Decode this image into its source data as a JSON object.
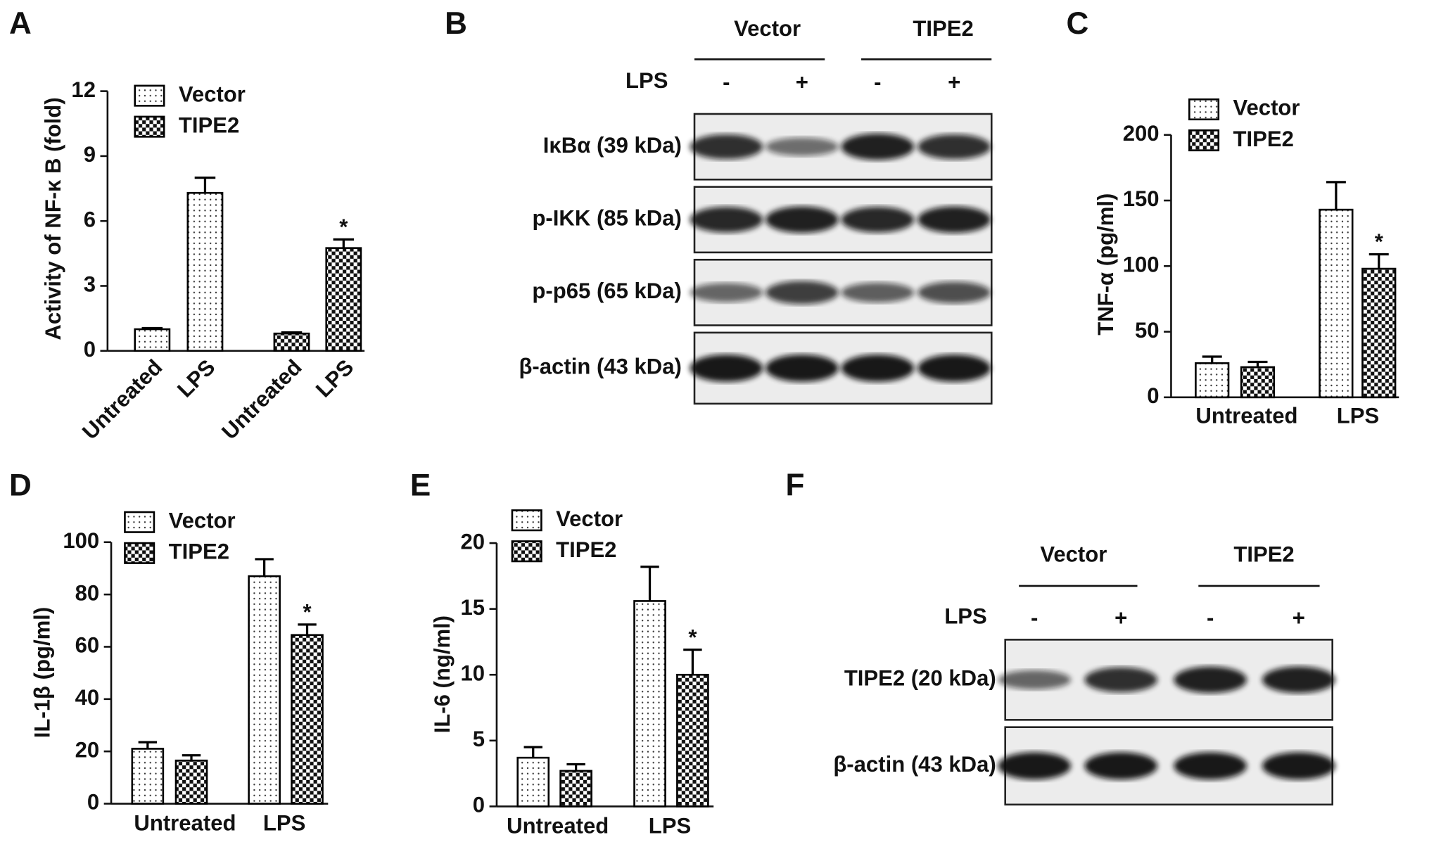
{
  "panels": [
    "A",
    "B",
    "C",
    "D",
    "E",
    "F"
  ],
  "chart_data": [
    {
      "type": "bar",
      "group_by": "series",
      "ylabel": "Activity of NF-κ B (fold)",
      "categories": [
        "Untreated",
        "LPS"
      ],
      "series": [
        {
          "name": "Vector",
          "pattern": "dots",
          "color": "#000000",
          "values": [
            1.0,
            7.3
          ],
          "errors": [
            0.05,
            0.7
          ]
        },
        {
          "name": "TIPE2",
          "pattern": "checker",
          "color": "#000000",
          "values": [
            0.8,
            4.75
          ],
          "errors": [
            0.05,
            0.4
          ]
        }
      ],
      "ylim": [
        0,
        12
      ],
      "yticks": [
        0,
        3,
        6,
        9,
        12
      ],
      "annotation": "*"
    },
    {
      "type": "bar",
      "group_by": "category",
      "ylabel": "TNF-α (pg/ml)",
      "categories": [
        "Untreated",
        "LPS"
      ],
      "series": [
        {
          "name": "Vector",
          "pattern": "dots",
          "color": "#000000",
          "values": [
            26,
            143
          ],
          "errors": [
            5,
            21
          ]
        },
        {
          "name": "TIPE2",
          "pattern": "checker",
          "color": "#000000",
          "values": [
            23,
            98
          ],
          "errors": [
            4,
            11
          ]
        }
      ],
      "ylim": [
        0,
        200
      ],
      "yticks": [
        0,
        50,
        100,
        150,
        200
      ],
      "annotation": "*"
    },
    {
      "type": "bar",
      "group_by": "category",
      "ylabel": "IL-1β (pg/ml)",
      "categories": [
        "Untreated",
        "LPS"
      ],
      "series": [
        {
          "name": "Vector",
          "pattern": "dots",
          "color": "#000000",
          "values": [
            21,
            87
          ],
          "errors": [
            2.5,
            6.5
          ]
        },
        {
          "name": "TIPE2",
          "pattern": "checker",
          "color": "#000000",
          "values": [
            16.5,
            64.5
          ],
          "errors": [
            2,
            4
          ]
        }
      ],
      "ylim": [
        0,
        100
      ],
      "yticks": [
        0,
        20,
        40,
        60,
        80,
        100
      ],
      "annotation": "*"
    },
    {
      "type": "bar",
      "group_by": "category",
      "ylabel": "IL-6 (ng/ml)",
      "categories": [
        "Untreated",
        "LPS"
      ],
      "series": [
        {
          "name": "Vector",
          "pattern": "dots",
          "color": "#000000",
          "values": [
            3.7,
            15.6
          ],
          "errors": [
            0.8,
            2.6
          ]
        },
        {
          "name": "TIPE2",
          "pattern": "checker",
          "color": "#000000",
          "values": [
            2.7,
            10
          ],
          "errors": [
            0.5,
            1.9
          ]
        }
      ],
      "ylim": [
        0,
        20
      ],
      "yticks": [
        0,
        5,
        10,
        15,
        20
      ],
      "annotation": "*"
    }
  ],
  "blots": [
    {
      "groups": [
        "Vector",
        "TIPE2"
      ],
      "treatment": "LPS",
      "lanes": [
        "-",
        "+",
        "-",
        "+"
      ],
      "rows": [
        "IκBα (39  kDa)",
        "p-IKK (85  kDa)",
        "p-p65 (65  kDa)",
        "β-actin (43  kDa)"
      ]
    },
    {
      "groups": [
        "Vector",
        "TIPE2"
      ],
      "treatment": "LPS",
      "lanes": [
        "-",
        "+",
        "-",
        "+"
      ],
      "rows": [
        "TIPE2 (20 kDa)",
        "β-actin (43 kDa)"
      ]
    }
  ]
}
